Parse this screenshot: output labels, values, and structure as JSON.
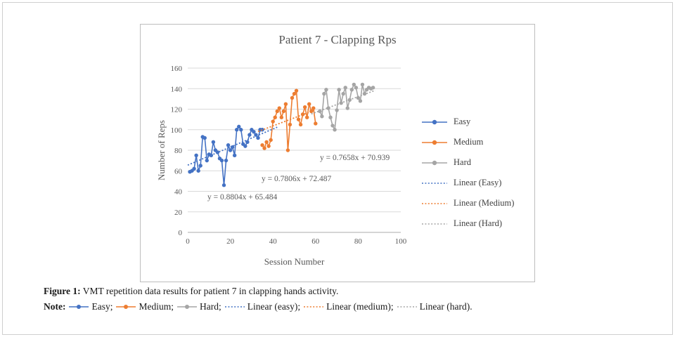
{
  "figure": {
    "caption_label": "Figure 1:",
    "caption_text": " VMT repetition data results for patient 7 in clapping hands activity.",
    "note_label": "Note:",
    "note_items": [
      {
        "label": "Easy;",
        "color": "#4472C4",
        "type": "line-dot"
      },
      {
        "label": "Medium;",
        "color": "#ED7D31",
        "type": "line-dot"
      },
      {
        "label": "Hard;",
        "color": "#A5A5A5",
        "type": "line-dot"
      },
      {
        "label": "Linear (easy);",
        "color": "#4472C4",
        "type": "dotted"
      },
      {
        "label": "Linear (medium);",
        "color": "#ED7D31",
        "type": "dotted"
      },
      {
        "label": "Linear (hard).",
        "color": "#A5A5A5",
        "type": "dotted"
      }
    ]
  },
  "chart_data": {
    "type": "scatter",
    "title": "Patient 7 - Clapping Rps",
    "xlabel": "Session Number",
    "ylabel": "Number of Reps",
    "xlim": [
      0,
      100
    ],
    "ylim": [
      0,
      160
    ],
    "xticks": [
      0,
      20,
      40,
      60,
      80,
      100
    ],
    "yticks": [
      0,
      20,
      40,
      60,
      80,
      100,
      120,
      140,
      160
    ],
    "grid": true,
    "legend_position": "right",
    "series": [
      {
        "name": "Easy",
        "color": "#4472C4",
        "points": [
          [
            1,
            59
          ],
          [
            2,
            60
          ],
          [
            3,
            62
          ],
          [
            4,
            75
          ],
          [
            5,
            60
          ],
          [
            6,
            65
          ],
          [
            7,
            93
          ],
          [
            8,
            92
          ],
          [
            9,
            70
          ],
          [
            10,
            76
          ],
          [
            11,
            75
          ],
          [
            12,
            88
          ],
          [
            13,
            80
          ],
          [
            14,
            78
          ],
          [
            15,
            72
          ],
          [
            16,
            70
          ],
          [
            17,
            46
          ],
          [
            18,
            70
          ],
          [
            19,
            85
          ],
          [
            20,
            80
          ],
          [
            21,
            83
          ],
          [
            22,
            75
          ],
          [
            23,
            100
          ],
          [
            24,
            103
          ],
          [
            25,
            100
          ],
          [
            26,
            86
          ],
          [
            27,
            84
          ],
          [
            28,
            88
          ],
          [
            29,
            95
          ],
          [
            30,
            100
          ],
          [
            31,
            98
          ],
          [
            32,
            95
          ],
          [
            33,
            92
          ],
          [
            34,
            100
          ],
          [
            35,
            100
          ]
        ]
      },
      {
        "name": "Medium",
        "color": "#ED7D31",
        "points": [
          [
            35,
            85
          ],
          [
            36,
            82
          ],
          [
            37,
            88
          ],
          [
            38,
            84
          ],
          [
            39,
            90
          ],
          [
            40,
            108
          ],
          [
            41,
            112
          ],
          [
            42,
            118
          ],
          [
            43,
            121
          ],
          [
            44,
            112
          ],
          [
            45,
            118
          ],
          [
            46,
            125
          ],
          [
            47,
            80
          ],
          [
            48,
            105
          ],
          [
            49,
            131
          ],
          [
            50,
            135
          ],
          [
            51,
            138
          ],
          [
            52,
            110
          ],
          [
            53,
            105
          ],
          [
            54,
            115
          ],
          [
            55,
            122
          ],
          [
            56,
            112
          ],
          [
            57,
            125
          ],
          [
            58,
            118
          ],
          [
            59,
            121
          ],
          [
            60,
            106
          ]
        ]
      },
      {
        "name": "Hard",
        "color": "#A5A5A5",
        "points": [
          [
            62,
            118
          ],
          [
            63,
            113
          ],
          [
            64,
            135
          ],
          [
            65,
            139
          ],
          [
            66,
            121
          ],
          [
            67,
            112
          ],
          [
            68,
            104
          ],
          [
            69,
            100
          ],
          [
            70,
            119
          ],
          [
            71,
            139
          ],
          [
            72,
            126
          ],
          [
            73,
            135
          ],
          [
            74,
            141
          ],
          [
            75,
            121
          ],
          [
            76,
            129
          ],
          [
            77,
            139
          ],
          [
            78,
            144
          ],
          [
            79,
            141
          ],
          [
            80,
            131
          ],
          [
            81,
            128
          ],
          [
            82,
            144
          ],
          [
            83,
            135
          ],
          [
            84,
            139
          ],
          [
            85,
            141
          ],
          [
            86,
            140
          ],
          [
            87,
            141
          ]
        ]
      }
    ],
    "trendlines": [
      {
        "name": "Linear (Easy)",
        "color": "#4472C4",
        "slope": 0.8804,
        "intercept": 65.484,
        "label": "y = 0.8804x + 65.484",
        "x_range": [
          0,
          42
        ]
      },
      {
        "name": "Linear (Medium)",
        "color": "#ED7D31",
        "slope": 0.7806,
        "intercept": 72.487,
        "label": "y = 0.7806x + 72.487",
        "x_range": [
          33,
          60
        ]
      },
      {
        "name": "Linear (Hard)",
        "color": "#A5A5A5",
        "slope": 0.7658,
        "intercept": 70.939,
        "label": "y = 0.7658x + 70.939",
        "x_range": [
          58,
          88
        ]
      }
    ],
    "legend": [
      {
        "label": "Easy",
        "color": "#4472C4",
        "type": "line-dot"
      },
      {
        "label": "Medium",
        "color": "#ED7D31",
        "type": "line-dot"
      },
      {
        "label": "Hard",
        "color": "#A5A5A5",
        "type": "line-dot"
      },
      {
        "label": "Linear (Easy)",
        "color": "#4472C4",
        "type": "dotted"
      },
      {
        "label": "Linear (Medium)",
        "color": "#ED7D31",
        "type": "dotted"
      },
      {
        "label": "Linear (Hard)",
        "color": "#A5A5A5",
        "type": "dotted"
      }
    ]
  }
}
